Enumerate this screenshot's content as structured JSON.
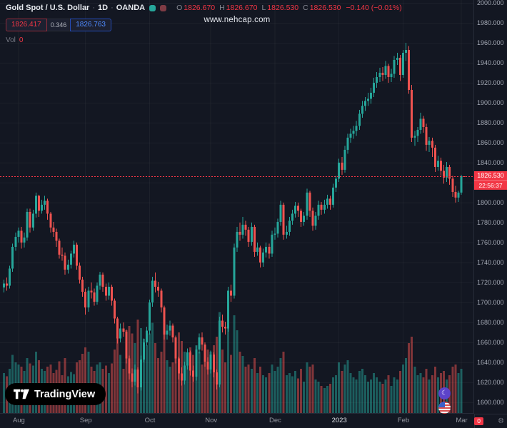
{
  "header": {
    "title": "Gold Spot / U.S. Dollar",
    "sep": "·",
    "interval": "1D",
    "exchange": "OANDA",
    "ohlc": {
      "o_label": "O",
      "open": "1826.670",
      "h_label": "H",
      "high": "1826.670",
      "l_label": "L",
      "low": "1826.530",
      "c_label": "C",
      "close": "1826.530",
      "change": "−0.140 (−0.01%)"
    },
    "order_panel": {
      "sell": "1826.417",
      "spread": "0.346",
      "buy": "1826.763"
    },
    "volume": {
      "label": "Vol",
      "value": "0"
    }
  },
  "watermark": "www.nehcap.com",
  "last_price": {
    "value": "1826.530",
    "countdown": "22:56:37",
    "price": 1826.53
  },
  "logo": {
    "label": "TradingView"
  },
  "footer_badge": "0",
  "icons": {
    "settings_glyph": "⚙",
    "moon_glyph": "☾"
  },
  "price_axis": {
    "min": 1600,
    "max": 2000,
    "step": 20,
    "decimals": 3
  },
  "time_axis": {
    "ticks": [
      {
        "label": "Aug",
        "index": 5
      },
      {
        "label": "Sep",
        "index": 28
      },
      {
        "label": "Oct",
        "index": 50
      },
      {
        "label": "Nov",
        "index": 71
      },
      {
        "label": "Dec",
        "index": 93
      },
      {
        "label": "2023",
        "index": 115,
        "year": true
      },
      {
        "label": "Feb",
        "index": 137
      },
      {
        "label": "Mar",
        "index": 157
      }
    ]
  },
  "chart_data": {
    "type": "candlestick",
    "title": "Gold Spot / U.S. Dollar · 1D · OANDA",
    "x_range": "2022-07-25 to 2023-03-02 (daily bars)",
    "y_axis": {
      "min": 1580,
      "max": 2003,
      "step": 20,
      "unit": "USD"
    },
    "volume_axis": {
      "min": 0,
      "max": 100,
      "note": "relative units, no scale shown"
    },
    "colors": {
      "up": "#26a69a",
      "down": "#ef5350",
      "vol_up": "rgba(38,166,154,0.5)",
      "vol_down": "rgba(239,83,80,0.5)",
      "last_line": "#f23645",
      "background": "#131722"
    },
    "series_format": [
      "open",
      "high",
      "low",
      "close",
      "volume"
    ],
    "candles": [
      [
        1715,
        1723,
        1710,
        1719,
        38
      ],
      [
        1719,
        1725,
        1712,
        1717,
        35
      ],
      [
        1717,
        1737,
        1714,
        1734,
        42
      ],
      [
        1734,
        1759,
        1731,
        1756,
        55
      ],
      [
        1756,
        1770,
        1752,
        1766,
        48
      ],
      [
        1766,
        1775,
        1760,
        1772,
        46
      ],
      [
        1772,
        1776,
        1754,
        1760,
        44
      ],
      [
        1760,
        1770,
        1755,
        1765,
        40
      ],
      [
        1765,
        1794,
        1762,
        1791,
        52
      ],
      [
        1791,
        1794,
        1770,
        1775,
        47
      ],
      [
        1775,
        1793,
        1772,
        1789,
        45
      ],
      [
        1789,
        1810,
        1785,
        1807,
        58
      ],
      [
        1807,
        1808,
        1786,
        1792,
        50
      ],
      [
        1792,
        1803,
        1789,
        1798,
        42
      ],
      [
        1798,
        1807,
        1793,
        1802,
        40
      ],
      [
        1802,
        1804,
        1783,
        1789,
        44
      ],
      [
        1789,
        1791,
        1770,
        1775,
        46
      ],
      [
        1775,
        1781,
        1766,
        1771,
        38
      ],
      [
        1771,
        1774,
        1756,
        1762,
        41
      ],
      [
        1762,
        1764,
        1744,
        1748,
        49
      ],
      [
        1748,
        1755,
        1742,
        1747,
        36
      ],
      [
        1747,
        1750,
        1728,
        1733,
        52
      ],
      [
        1733,
        1743,
        1729,
        1738,
        35
      ],
      [
        1738,
        1752,
        1734,
        1749,
        39
      ],
      [
        1749,
        1762,
        1745,
        1758,
        37
      ],
      [
        1758,
        1760,
        1733,
        1737,
        48
      ],
      [
        1737,
        1740,
        1719,
        1723,
        50
      ],
      [
        1723,
        1726,
        1706,
        1711,
        56
      ],
      [
        1711,
        1714,
        1688,
        1695,
        62
      ],
      [
        1695,
        1716,
        1691,
        1712,
        58
      ],
      [
        1712,
        1720,
        1704,
        1710,
        44
      ],
      [
        1710,
        1714,
        1697,
        1701,
        40
      ],
      [
        1701,
        1720,
        1698,
        1717,
        46
      ],
      [
        1717,
        1731,
        1713,
        1728,
        48
      ],
      [
        1728,
        1730,
        1711,
        1716,
        42
      ],
      [
        1716,
        1719,
        1702,
        1707,
        45
      ],
      [
        1707,
        1720,
        1703,
        1716,
        38
      ],
      [
        1716,
        1718,
        1697,
        1702,
        47
      ],
      [
        1702,
        1704,
        1679,
        1684,
        60
      ],
      [
        1684,
        1686,
        1659,
        1664,
        72
      ],
      [
        1664,
        1679,
        1660,
        1674,
        55
      ],
      [
        1674,
        1680,
        1666,
        1671,
        42
      ],
      [
        1671,
        1673,
        1639,
        1644,
        78
      ],
      [
        1644,
        1647,
        1623,
        1629,
        82
      ],
      [
        1629,
        1634,
        1615,
        1621,
        75
      ],
      [
        1621,
        1638,
        1617,
        1633,
        66
      ],
      [
        1633,
        1635,
        1609,
        1615,
        88
      ],
      [
        1615,
        1647,
        1612,
        1643,
        80
      ],
      [
        1643,
        1664,
        1640,
        1660,
        70
      ],
      [
        1660,
        1676,
        1657,
        1672,
        64
      ],
      [
        1672,
        1703,
        1668,
        1700,
        75
      ],
      [
        1700,
        1726,
        1696,
        1722,
        85
      ],
      [
        1722,
        1730,
        1710,
        1716,
        66
      ],
      [
        1716,
        1721,
        1706,
        1712,
        52
      ],
      [
        1712,
        1714,
        1690,
        1695,
        58
      ],
      [
        1695,
        1697,
        1663,
        1668,
        74
      ],
      [
        1668,
        1678,
        1663,
        1672,
        50
      ],
      [
        1672,
        1682,
        1667,
        1677,
        44
      ],
      [
        1677,
        1679,
        1660,
        1665,
        48
      ],
      [
        1665,
        1667,
        1639,
        1644,
        70
      ],
      [
        1644,
        1646,
        1623,
        1629,
        76
      ],
      [
        1629,
        1635,
        1617,
        1622,
        68
      ],
      [
        1622,
        1641,
        1618,
        1637,
        58
      ],
      [
        1637,
        1654,
        1633,
        1650,
        54
      ],
      [
        1650,
        1652,
        1627,
        1632,
        62
      ],
      [
        1632,
        1637,
        1621,
        1626,
        55
      ],
      [
        1626,
        1657,
        1622,
        1653,
        64
      ],
      [
        1653,
        1669,
        1649,
        1665,
        58
      ],
      [
        1665,
        1670,
        1652,
        1658,
        46
      ],
      [
        1658,
        1660,
        1636,
        1641,
        55
      ],
      [
        1641,
        1645,
        1628,
        1633,
        60
      ],
      [
        1633,
        1652,
        1629,
        1648,
        58
      ],
      [
        1648,
        1650,
        1625,
        1630,
        64
      ],
      [
        1630,
        1633,
        1613,
        1618,
        72
      ],
      [
        1618,
        1686,
        1615,
        1682,
        95
      ],
      [
        1682,
        1688,
        1670,
        1676,
        60
      ],
      [
        1676,
        1681,
        1668,
        1674,
        48
      ],
      [
        1674,
        1716,
        1671,
        1712,
        80
      ],
      [
        1712,
        1718,
        1701,
        1707,
        55
      ],
      [
        1707,
        1759,
        1704,
        1755,
        92
      ],
      [
        1755,
        1776,
        1751,
        1771,
        78
      ],
      [
        1771,
        1780,
        1762,
        1768,
        58
      ],
      [
        1768,
        1786,
        1764,
        1778,
        54
      ],
      [
        1778,
        1782,
        1767,
        1773,
        44
      ],
      [
        1773,
        1776,
        1756,
        1761,
        46
      ],
      [
        1761,
        1780,
        1757,
        1776,
        42
      ],
      [
        1776,
        1778,
        1746,
        1751,
        52
      ],
      [
        1751,
        1760,
        1747,
        1755,
        38
      ],
      [
        1755,
        1757,
        1735,
        1740,
        44
      ],
      [
        1740,
        1754,
        1736,
        1750,
        36
      ],
      [
        1750,
        1760,
        1745,
        1756,
        34
      ],
      [
        1756,
        1759,
        1744,
        1749,
        38
      ],
      [
        1749,
        1772,
        1746,
        1768,
        46
      ],
      [
        1768,
        1775,
        1763,
        1769,
        40
      ],
      [
        1769,
        1784,
        1765,
        1781,
        44
      ],
      [
        1781,
        1802,
        1777,
        1798,
        52
      ],
      [
        1798,
        1800,
        1763,
        1768,
        58
      ],
      [
        1768,
        1777,
        1764,
        1771,
        36
      ],
      [
        1771,
        1786,
        1767,
        1782,
        38
      ],
      [
        1782,
        1793,
        1778,
        1789,
        35
      ],
      [
        1789,
        1801,
        1785,
        1797,
        40
      ],
      [
        1797,
        1800,
        1786,
        1792,
        33
      ],
      [
        1792,
        1794,
        1776,
        1781,
        42
      ],
      [
        1781,
        1791,
        1777,
        1787,
        30
      ],
      [
        1787,
        1814,
        1783,
        1810,
        48
      ],
      [
        1810,
        1812,
        1786,
        1792,
        44
      ],
      [
        1792,
        1795,
        1772,
        1777,
        46
      ],
      [
        1777,
        1791,
        1773,
        1787,
        32
      ],
      [
        1787,
        1802,
        1783,
        1798,
        30
      ],
      [
        1798,
        1801,
        1788,
        1793,
        26
      ],
      [
        1793,
        1803,
        1789,
        1798,
        24
      ],
      [
        1798,
        1808,
        1794,
        1804,
        26
      ],
      [
        1804,
        1807,
        1793,
        1798,
        28
      ],
      [
        1798,
        1819,
        1795,
        1815,
        34
      ],
      [
        1815,
        1827,
        1811,
        1824,
        36
      ],
      [
        1824,
        1844,
        1821,
        1840,
        48
      ],
      [
        1840,
        1846,
        1828,
        1833,
        40
      ],
      [
        1833,
        1857,
        1830,
        1853,
        46
      ],
      [
        1853,
        1869,
        1849,
        1865,
        50
      ],
      [
        1865,
        1874,
        1860,
        1869,
        38
      ],
      [
        1869,
        1877,
        1864,
        1872,
        34
      ],
      [
        1872,
        1882,
        1867,
        1877,
        32
      ],
      [
        1877,
        1893,
        1873,
        1889,
        40
      ],
      [
        1889,
        1902,
        1885,
        1897,
        42
      ],
      [
        1897,
        1906,
        1892,
        1902,
        36
      ],
      [
        1902,
        1910,
        1897,
        1904,
        30
      ],
      [
        1904,
        1915,
        1899,
        1910,
        32
      ],
      [
        1910,
        1925,
        1906,
        1920,
        38
      ],
      [
        1920,
        1931,
        1915,
        1926,
        34
      ],
      [
        1926,
        1935,
        1921,
        1930,
        30
      ],
      [
        1930,
        1936,
        1922,
        1928,
        28
      ],
      [
        1928,
        1942,
        1924,
        1937,
        32
      ],
      [
        1937,
        1939,
        1920,
        1926,
        36
      ],
      [
        1926,
        1934,
        1921,
        1929,
        26
      ],
      [
        1929,
        1947,
        1925,
        1943,
        34
      ],
      [
        1943,
        1950,
        1938,
        1945,
        32
      ],
      [
        1945,
        1948,
        1922,
        1928,
        40
      ],
      [
        1928,
        1953,
        1925,
        1950,
        46
      ],
      [
        1950,
        1960,
        1942,
        1953,
        52
      ],
      [
        1953,
        1957,
        1909,
        1913,
        66
      ],
      [
        1913,
        1918,
        1861,
        1865,
        72
      ],
      [
        1865,
        1872,
        1857,
        1867,
        44
      ],
      [
        1867,
        1876,
        1861,
        1873,
        36
      ],
      [
        1873,
        1890,
        1869,
        1884,
        38
      ],
      [
        1884,
        1887,
        1870,
        1876,
        34
      ],
      [
        1876,
        1879,
        1852,
        1858,
        42
      ],
      [
        1858,
        1866,
        1851,
        1862,
        32
      ],
      [
        1862,
        1865,
        1846,
        1855,
        36
      ],
      [
        1855,
        1858,
        1831,
        1836,
        44
      ],
      [
        1836,
        1847,
        1832,
        1842,
        34
      ],
      [
        1842,
        1845,
        1827,
        1832,
        38
      ],
      [
        1832,
        1838,
        1819,
        1825,
        40
      ],
      [
        1825,
        1841,
        1821,
        1836,
        32
      ],
      [
        1836,
        1838,
        1818,
        1824,
        36
      ],
      [
        1824,
        1827,
        1806,
        1811,
        44
      ],
      [
        1811,
        1817,
        1800,
        1805,
        46
      ],
      [
        1805,
        1812,
        1801,
        1810,
        38
      ],
      [
        1810,
        1828,
        1808,
        1826.7,
        42
      ],
      [
        1826.7,
        1826.7,
        1826.5,
        1826.5,
        0
      ]
    ]
  }
}
